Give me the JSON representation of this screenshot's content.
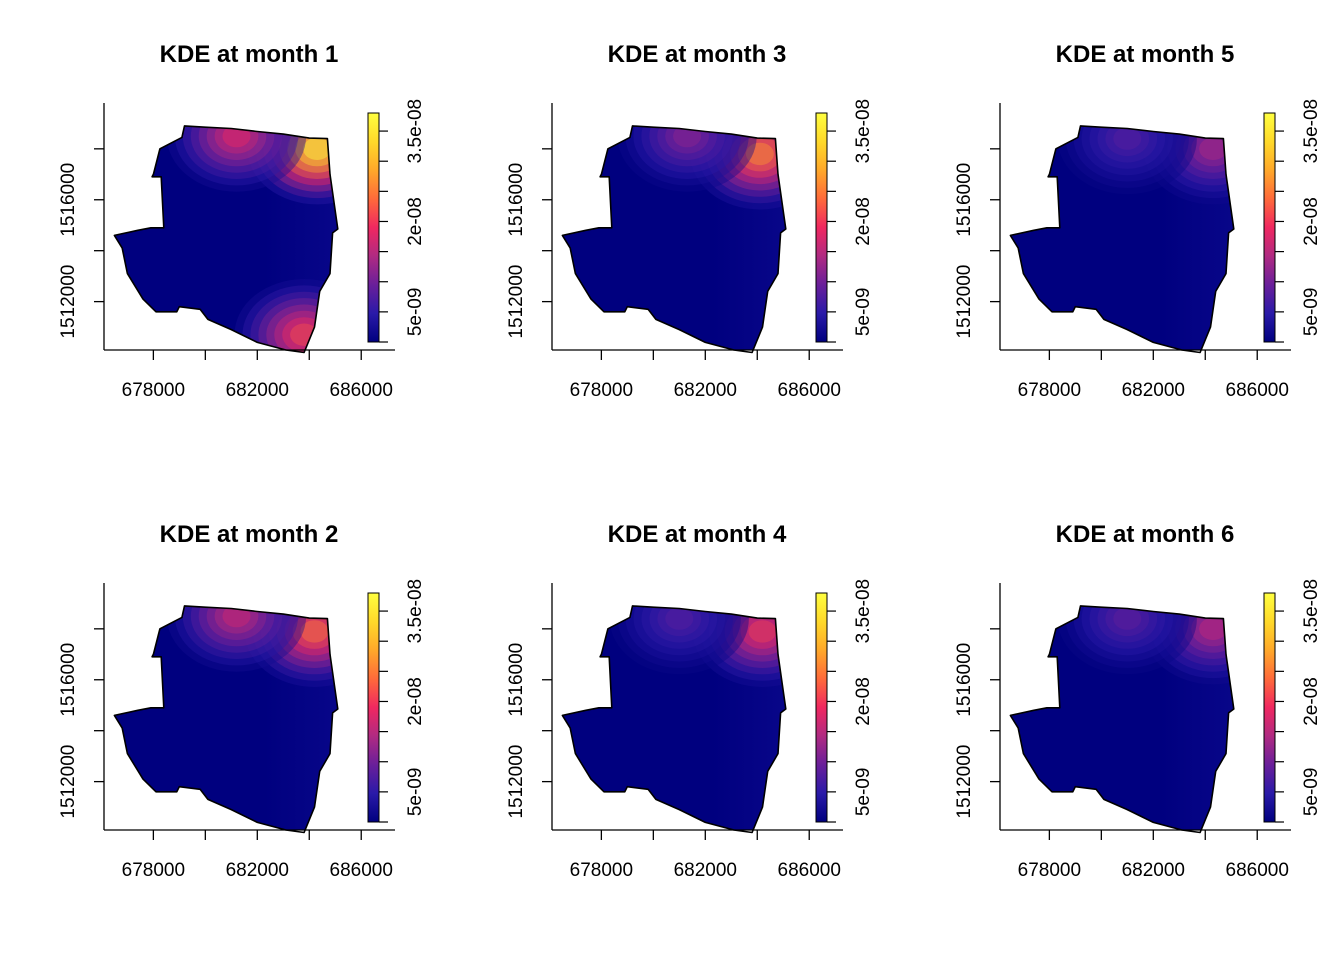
{
  "figure": {
    "panels": [
      {
        "title": "KDE at month 1",
        "hotspots": [
          {
            "x": 684300,
            "y": 1518000,
            "peak": 1.0
          },
          {
            "x": 681200,
            "y": 1518500,
            "peak": 0.5
          },
          {
            "x": 683800,
            "y": 1510700,
            "peak": 0.58
          }
        ]
      },
      {
        "title": "KDE at month 3",
        "hotspots": [
          {
            "x": 684100,
            "y": 1517800,
            "peak": 0.72
          },
          {
            "x": 681300,
            "y": 1518500,
            "peak": 0.32
          }
        ]
      },
      {
        "title": "KDE at month 5",
        "hotspots": [
          {
            "x": 684300,
            "y": 1518000,
            "peak": 0.38
          },
          {
            "x": 681000,
            "y": 1518400,
            "peak": 0.22
          }
        ]
      },
      {
        "title": "KDE at month 2",
        "hotspots": [
          {
            "x": 684200,
            "y": 1517900,
            "peak": 0.66
          },
          {
            "x": 681200,
            "y": 1518500,
            "peak": 0.45
          }
        ]
      },
      {
        "title": "KDE at month 4",
        "hotspots": [
          {
            "x": 684200,
            "y": 1517900,
            "peak": 0.55
          },
          {
            "x": 681000,
            "y": 1518400,
            "peak": 0.22
          }
        ]
      },
      {
        "title": "KDE at month 6",
        "hotspots": [
          {
            "x": 684300,
            "y": 1518000,
            "peak": 0.42
          },
          {
            "x": 681000,
            "y": 1518400,
            "peak": 0.24
          }
        ]
      }
    ]
  },
  "chart_data": {
    "type": "heatmap",
    "x_ticks": [
      "678000",
      "682000",
      "686000"
    ],
    "x_tick_values": [
      678000,
      682000,
      686000
    ],
    "y_ticks": [
      "1512000",
      "1516000"
    ],
    "y_tick_values": [
      1512000,
      1516000
    ],
    "xlim": [
      676100,
      687300
    ],
    "ylim": [
      1510100,
      1519800
    ],
    "colorbar": {
      "ticks": [
        "5e-09",
        "2e-08",
        "3.5e-08"
      ],
      "range": [
        0,
        3.8e-08
      ],
      "colors": [
        "#00007f",
        "#2a1aa8",
        "#6a1f9a",
        "#b02a82",
        "#f02860",
        "#ff6a3a",
        "#ffa82a",
        "#ffd92a",
        "#ffff40"
      ]
    },
    "boundary": [
      [
        676500,
        1514600
      ],
      [
        677400,
        1514800
      ],
      [
        677900,
        1514900
      ],
      [
        678400,
        1514900
      ],
      [
        678300,
        1516900
      ],
      [
        677950,
        1516900
      ],
      [
        678000,
        1517000
      ],
      [
        678250,
        1518000
      ],
      [
        679100,
        1518450
      ],
      [
        679200,
        1518900
      ],
      [
        680000,
        1518850
      ],
      [
        681000,
        1518800
      ],
      [
        682000,
        1518680
      ],
      [
        683000,
        1518580
      ],
      [
        684000,
        1518420
      ],
      [
        684700,
        1518400
      ],
      [
        684800,
        1517000
      ],
      [
        685100,
        1514850
      ],
      [
        684900,
        1514700
      ],
      [
        684800,
        1513100
      ],
      [
        684400,
        1512400
      ],
      [
        684200,
        1511000
      ],
      [
        683800,
        1510000
      ],
      [
        683100,
        1510100
      ],
      [
        682000,
        1510400
      ],
      [
        681000,
        1510900
      ],
      [
        680100,
        1511300
      ],
      [
        679800,
        1511700
      ],
      [
        679000,
        1511800
      ],
      [
        678900,
        1511600
      ],
      [
        678100,
        1511600
      ],
      [
        677600,
        1512100
      ],
      [
        677000,
        1513100
      ],
      [
        676800,
        1514100
      ]
    ]
  }
}
